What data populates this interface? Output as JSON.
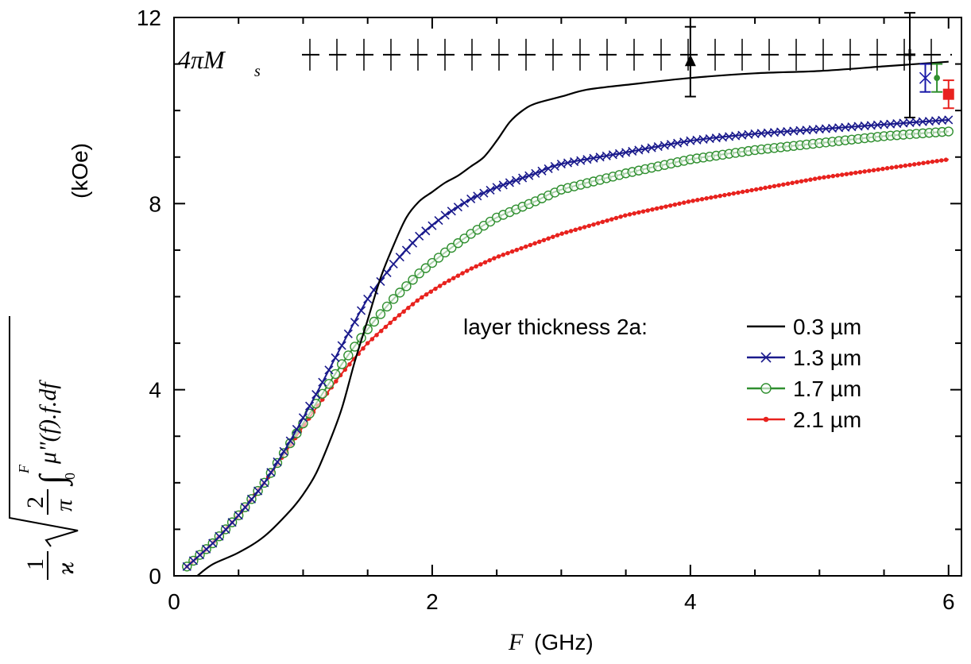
{
  "chart_data": {
    "type": "line",
    "xlabel": {
      "var": "F",
      "unit": "(GHz)"
    },
    "ylabel": {
      "unit": "(kOe)",
      "formula_parts": {
        "one": "1",
        "kappa": "ϰ",
        "two": "2",
        "pi": "π",
        "F": "F",
        "zero": "0",
        "integrand": "μ\"(f).f.df"
      }
    },
    "xlim": [
      0,
      6.1
    ],
    "ylim": [
      0,
      12
    ],
    "x_ticks": [
      0,
      2,
      4,
      6
    ],
    "y_ticks": [
      0,
      4,
      8,
      12
    ],
    "grid": false,
    "legend_placement": "center-right",
    "legend_title": "layer thickness 2a:",
    "reference_line": {
      "label_main": "4πM",
      "label_sub": "s",
      "y": 11.2,
      "style": "dashed-with-vertical-ticks"
    },
    "series": [
      {
        "name": "0.3 µm",
        "color": "#000000",
        "marker": "none",
        "x": [
          0.18,
          0.3,
          0.5,
          0.7,
          0.9,
          1.0,
          1.1,
          1.2,
          1.3,
          1.4,
          1.5,
          1.6,
          1.7,
          1.8,
          1.9,
          2.0,
          2.1,
          2.2,
          2.3,
          2.4,
          2.5,
          2.6,
          2.7,
          2.8,
          3.0,
          3.2,
          3.5,
          4.0,
          4.5,
          5.0,
          5.5,
          6.0
        ],
        "y": [
          0.0,
          0.25,
          0.5,
          0.85,
          1.4,
          1.75,
          2.2,
          2.85,
          3.6,
          4.6,
          5.5,
          6.4,
          7.1,
          7.7,
          8.05,
          8.25,
          8.45,
          8.6,
          8.8,
          9.0,
          9.35,
          9.75,
          10.0,
          10.15,
          10.3,
          10.45,
          10.55,
          10.7,
          10.8,
          10.85,
          10.95,
          11.05
        ]
      },
      {
        "name": "1.3 µm",
        "color": "#1a1a8c",
        "marker": "x",
        "x": [
          0.1,
          0.3,
          0.5,
          0.7,
          0.9,
          1.1,
          1.3,
          1.5,
          1.7,
          1.9,
          2.1,
          2.3,
          2.5,
          2.8,
          3.0,
          3.5,
          4.0,
          4.5,
          5.0,
          5.5,
          6.0
        ],
        "y": [
          0.2,
          0.7,
          1.3,
          2.0,
          2.9,
          3.9,
          4.95,
          5.95,
          6.7,
          7.3,
          7.75,
          8.1,
          8.35,
          8.65,
          8.85,
          9.1,
          9.35,
          9.5,
          9.6,
          9.7,
          9.8
        ]
      },
      {
        "name": "1.7 µm",
        "color": "#2f8f2f",
        "marker": "o",
        "x": [
          0.1,
          0.3,
          0.5,
          0.7,
          0.9,
          1.1,
          1.3,
          1.5,
          1.7,
          1.9,
          2.1,
          2.3,
          2.5,
          2.8,
          3.0,
          3.5,
          4.0,
          4.5,
          5.0,
          5.5,
          6.0
        ],
        "y": [
          0.2,
          0.7,
          1.3,
          2.0,
          2.85,
          3.7,
          4.55,
          5.3,
          5.95,
          6.5,
          6.95,
          7.35,
          7.7,
          8.05,
          8.3,
          8.65,
          8.95,
          9.15,
          9.3,
          9.45,
          9.55
        ]
      },
      {
        "name": "2.1 µm",
        "color": "#e8221e",
        "marker": "dot",
        "x": [
          0.1,
          0.3,
          0.5,
          0.7,
          0.9,
          1.1,
          1.3,
          1.5,
          1.7,
          1.9,
          2.1,
          2.3,
          2.5,
          2.8,
          3.0,
          3.5,
          4.0,
          4.5,
          5.0,
          5.5,
          6.0
        ],
        "y": [
          0.2,
          0.7,
          1.3,
          2.0,
          2.8,
          3.6,
          4.35,
          5.0,
          5.5,
          5.95,
          6.3,
          6.6,
          6.85,
          7.15,
          7.35,
          7.75,
          8.05,
          8.3,
          8.55,
          8.75,
          8.95
        ]
      }
    ],
    "error_points": [
      {
        "x": 4.0,
        "y": 11.05,
        "yerr": 0.75,
        "color": "#000000",
        "marker": "triangle"
      },
      {
        "x": 5.7,
        "y": 11.2,
        "yerr": [
          1.35,
          0.9
        ],
        "color": "#000000",
        "marker": "star"
      },
      {
        "x": 5.82,
        "y": 10.7,
        "yerr": 0.3,
        "color": "#1a1aa8",
        "marker": "x"
      },
      {
        "x": 5.91,
        "y": 10.7,
        "yerr": 0.3,
        "color": "#2f8f2f",
        "marker": "dot"
      },
      {
        "x": 6.0,
        "y": 10.35,
        "yerr": 0.3,
        "color": "#e8221e",
        "marker": "square"
      }
    ]
  }
}
